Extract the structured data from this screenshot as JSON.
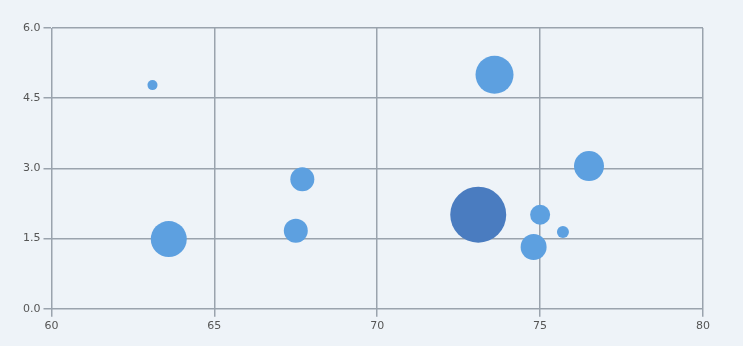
{
  "chart_data": {
    "type": "bubble",
    "x": [
      63.1,
      63.6,
      67.7,
      67.5,
      73.6,
      73.1,
      75.0,
      75.7,
      74.8,
      76.5
    ],
    "values": [
      4.78,
      1.49,
      2.77,
      1.67,
      5.0,
      2.01,
      2.01,
      1.64,
      1.32,
      3.05
    ],
    "sizes": [
      5,
      18,
      12,
      12,
      19,
      28,
      10,
      6,
      13,
      15
    ],
    "colors": [
      "#5da0e0",
      "#5da0e0",
      "#5da0e0",
      "#5da0e0",
      "#5da0e0",
      "#4a7cc0",
      "#5da0e0",
      "#5da0e0",
      "#5da0e0",
      "#5da0e0"
    ],
    "xlim": [
      60,
      80
    ],
    "xticks": [
      60,
      65,
      70,
      75,
      80
    ],
    "ylim": [
      0,
      6
    ],
    "yticks": [
      {
        "value": 0,
        "label": "0.0"
      },
      {
        "value": 1.5,
        "label": "1.5"
      },
      {
        "value": 3,
        "label": "3.0"
      },
      {
        "value": 4.5,
        "label": "4.5"
      },
      {
        "value": 6,
        "label": "6.0"
      }
    ],
    "grid": true
  }
}
